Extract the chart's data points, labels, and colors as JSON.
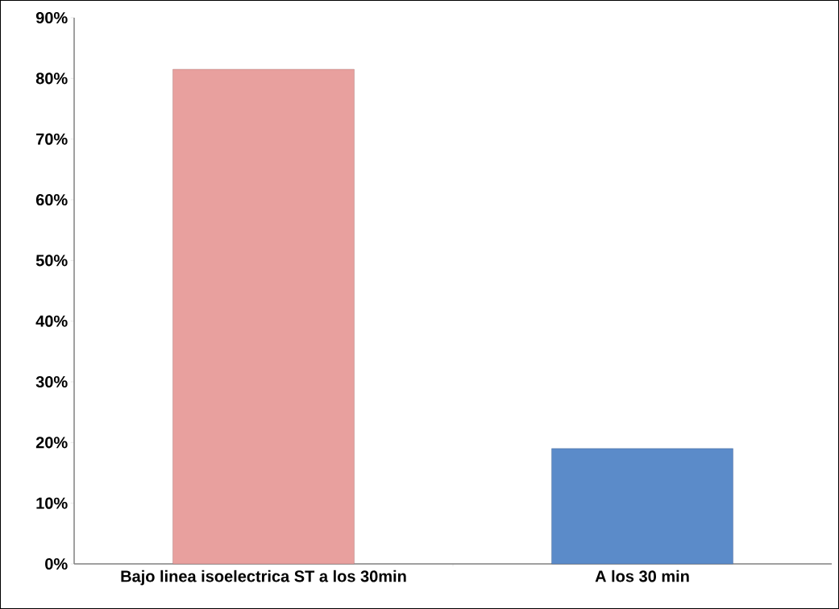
{
  "chart_data": {
    "type": "bar",
    "categories": [
      "Bajo linea isoelectrica ST a los 30min",
      "A los 30 min"
    ],
    "values": [
      81.5,
      19
    ],
    "colors": [
      "#e8a09e",
      "#5b8bc9"
    ],
    "ylim": [
      0,
      90
    ],
    "yticks": [
      {
        "value": 0,
        "label": "0%"
      },
      {
        "value": 10,
        "label": "10%"
      },
      {
        "value": 20,
        "label": "20%"
      },
      {
        "value": 30,
        "label": "30%"
      },
      {
        "value": 40,
        "label": "40%"
      },
      {
        "value": 50,
        "label": "50%"
      },
      {
        "value": 60,
        "label": "60%"
      },
      {
        "value": 70,
        "label": "70%"
      },
      {
        "value": 80,
        "label": "80%"
      },
      {
        "value": 90,
        "label": "90%"
      }
    ]
  }
}
